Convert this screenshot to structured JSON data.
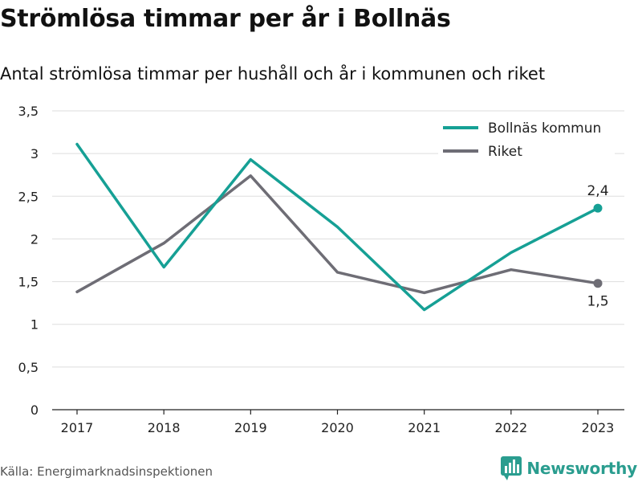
{
  "header": {
    "title": "Strömlösa timmar per år i Bollnäs",
    "subtitle": "Antal strömlösa timmar per hushåll och år i kommunen och riket"
  },
  "footer": {
    "source": "Källa: Energimarknadsinspektionen",
    "brand": "Newsworthy",
    "brand_icon": "bar-chart-logo-icon"
  },
  "colors": {
    "bollnas": "#16a095",
    "riket": "#6e6d75",
    "grid": "#dddddd",
    "brand": "#2a9d8f"
  },
  "chart_data": {
    "type": "line",
    "title": "Strömlösa timmar per år i Bollnäs",
    "subtitle": "Antal strömlösa timmar per hushåll och år i kommunen och riket",
    "x": [
      "2017",
      "2018",
      "2019",
      "2020",
      "2021",
      "2022",
      "2023"
    ],
    "ylim": [
      0,
      3.5
    ],
    "yticks": [
      "0",
      "0,5",
      "1",
      "1,5",
      "2",
      "2,5",
      "3",
      "3,5"
    ],
    "ytick_values": [
      0,
      0.5,
      1,
      1.5,
      2,
      2.5,
      3,
      3.5
    ],
    "grid": true,
    "legend_position": "top-right",
    "series": [
      {
        "name": "Bollnäs kommun",
        "color": "#16a095",
        "values": [
          3.11,
          1.67,
          2.93,
          2.14,
          1.17,
          1.84,
          2.36
        ],
        "end_label": "2,4"
      },
      {
        "name": "Riket",
        "color": "#6e6d75",
        "values": [
          1.38,
          1.95,
          2.74,
          1.61,
          1.37,
          1.64,
          1.48
        ],
        "end_label": "1,5"
      }
    ]
  }
}
